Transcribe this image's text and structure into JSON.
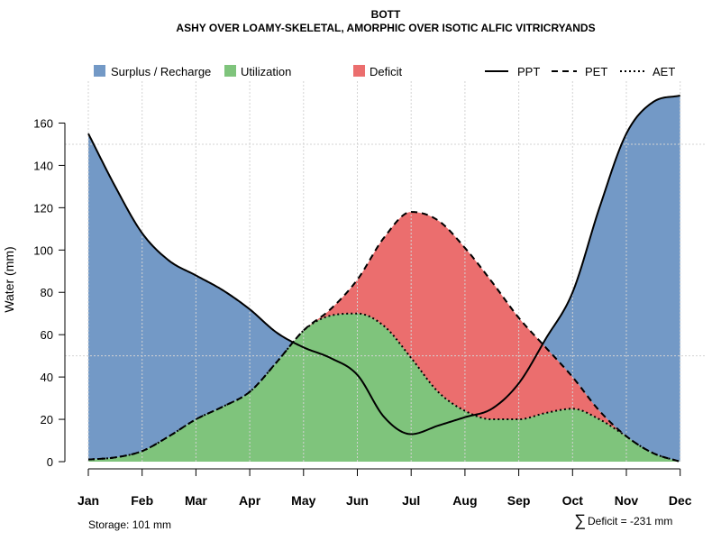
{
  "chart_data": {
    "type": "area",
    "title": "BOTT",
    "subtitle": "ASHY OVER LOAMY-SKELETAL, AMORPHIC OVER ISOTIC ALFIC VITRICRYANDS",
    "xlabel": "",
    "ylabel": "Water (mm)",
    "ylim": [
      0,
      180
    ],
    "yticks": [
      0,
      20,
      40,
      60,
      80,
      100,
      120,
      140,
      160
    ],
    "ytick_labels": [
      "0",
      "20",
      "40",
      "60",
      "80",
      "100",
      "120",
      "140",
      "160"
    ],
    "grid": true,
    "categories": [
      "Jan",
      "Feb",
      "Mar",
      "Apr",
      "May",
      "Jun",
      "Jul",
      "Aug",
      "Sep",
      "Oct",
      "Nov",
      "Dec"
    ],
    "series": [
      {
        "name": "PPT",
        "style": "solid",
        "x": [
          1,
          1.5,
          2,
          2.5,
          3,
          3.5,
          4,
          4.5,
          5,
          5.5,
          6,
          6.5,
          7,
          7.5,
          8,
          8.5,
          9,
          9.5,
          10,
          10.5,
          11,
          11.5,
          12
        ],
        "values": [
          155,
          130,
          108,
          95,
          88,
          81,
          72,
          61,
          54,
          49,
          41,
          21,
          13,
          17,
          21,
          25,
          37,
          58,
          80,
          120,
          155,
          170,
          173
        ]
      },
      {
        "name": "PET",
        "style": "dashed",
        "x": [
          1,
          1.5,
          2,
          2.5,
          3,
          3.5,
          4,
          4.5,
          5,
          5.5,
          6,
          6.5,
          7,
          7.5,
          8,
          8.5,
          9,
          9.5,
          10,
          10.5,
          11,
          11.5,
          12
        ],
        "values": [
          1,
          2,
          5,
          12,
          20,
          26,
          33,
          47,
          62,
          72,
          86,
          106,
          118,
          114,
          101,
          85,
          68,
          54,
          40,
          24,
          12,
          4,
          0
        ]
      },
      {
        "name": "AET",
        "style": "dotted",
        "x": [
          1,
          1.5,
          2,
          2.5,
          3,
          3.5,
          4,
          4.5,
          5,
          5.5,
          6,
          6.5,
          7,
          7.5,
          8,
          8.5,
          9,
          9.5,
          10,
          10.5,
          11,
          11.5,
          12
        ],
        "values": [
          1,
          2,
          5,
          12,
          20,
          26,
          33,
          47,
          62,
          69,
          70,
          64,
          49,
          33,
          24,
          20,
          20,
          23,
          25,
          20,
          12,
          4,
          0
        ]
      }
    ],
    "legend": [
      {
        "label": "Surplus / Recharge",
        "kind": "fill",
        "color": "#7399c6"
      },
      {
        "label": "Utilization",
        "kind": "fill",
        "color": "#7fc47c"
      },
      {
        "label": "Deficit",
        "kind": "fill",
        "color": "#eb6e6e"
      },
      {
        "label": "PPT",
        "kind": "line",
        "style": "solid"
      },
      {
        "label": "PET",
        "kind": "line",
        "style": "dashed"
      },
      {
        "label": "AET",
        "kind": "line",
        "style": "dotted"
      }
    ],
    "legend_position": "top",
    "colors": {
      "surplus": "#7399c6",
      "utilization": "#7fc47c",
      "deficit": "#eb6e6e",
      "grid": "#d3d3d3",
      "line": "#000000"
    },
    "annotations": {
      "storage": "Storage: 101 mm",
      "deficit_symbol": "∑",
      "deficit_text": "Deficit = -231 mm"
    }
  }
}
